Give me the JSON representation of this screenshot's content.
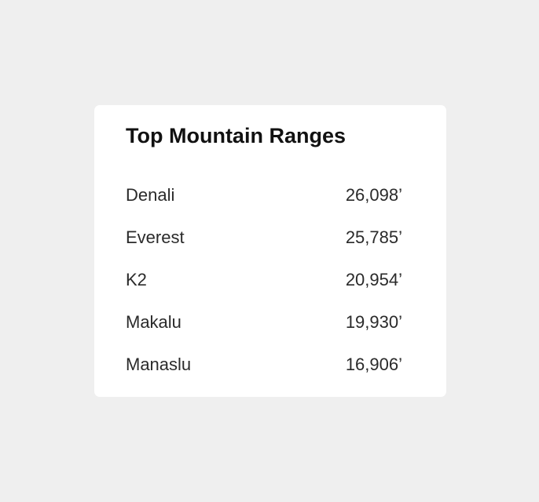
{
  "card": {
    "title": "Top Mountain Ranges",
    "rows": [
      {
        "name": "Denali",
        "value": "26,098’"
      },
      {
        "name": "Everest",
        "value": "25,785’"
      },
      {
        "name": "K2",
        "value": "20,954’"
      },
      {
        "name": "Makalu",
        "value": "19,930’"
      },
      {
        "name": "Manaslu",
        "value": "16,906’"
      }
    ]
  },
  "colors": {
    "page_background": "#efefef",
    "card_background": "#ffffff",
    "title_text": "#111111",
    "row_text": "#2a2a2a"
  }
}
